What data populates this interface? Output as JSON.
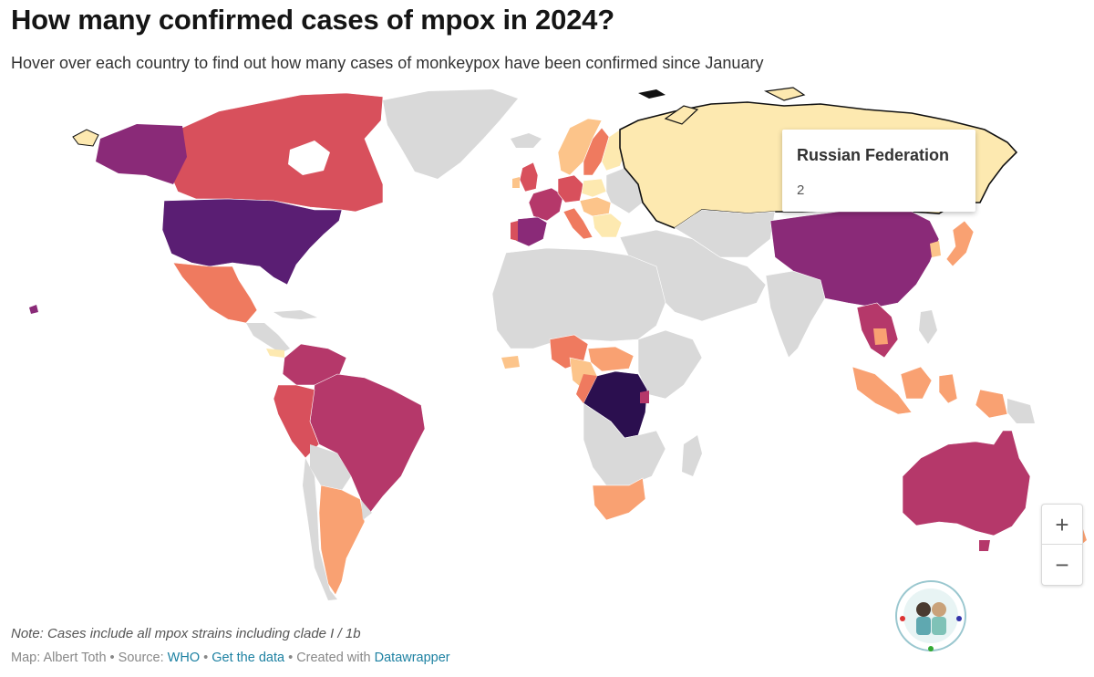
{
  "header": {
    "title": "How many confirmed cases of mpox in 2024?",
    "subtitle": "Hover over each country to find out how many cases of monkeypox have been confirmed since January"
  },
  "tooltip": {
    "country": "Russian Federation",
    "value": "2"
  },
  "zoom": {
    "in_label": "+",
    "out_label": "−"
  },
  "note": "Note: Cases include all mpox strains including clade I / 1b",
  "footer": {
    "map_by": "Map: Albert Toth",
    "sep1": " • Source: ",
    "source": "WHO",
    "sep2": " • ",
    "get_data": "Get the data",
    "sep3": " • Created with ",
    "created_with": "Datawrapper"
  },
  "colors": {
    "no_data": "#d9d9d9",
    "scale": [
      "#fde9b0",
      "#fcc48a",
      "#f9a172",
      "#ef7a5f",
      "#d8505c",
      "#b5386a",
      "#8a2a78",
      "#5a1e73",
      "#2b0f4f"
    ]
  },
  "icons": {
    "logo": "travel-blog-logo-icon"
  }
}
